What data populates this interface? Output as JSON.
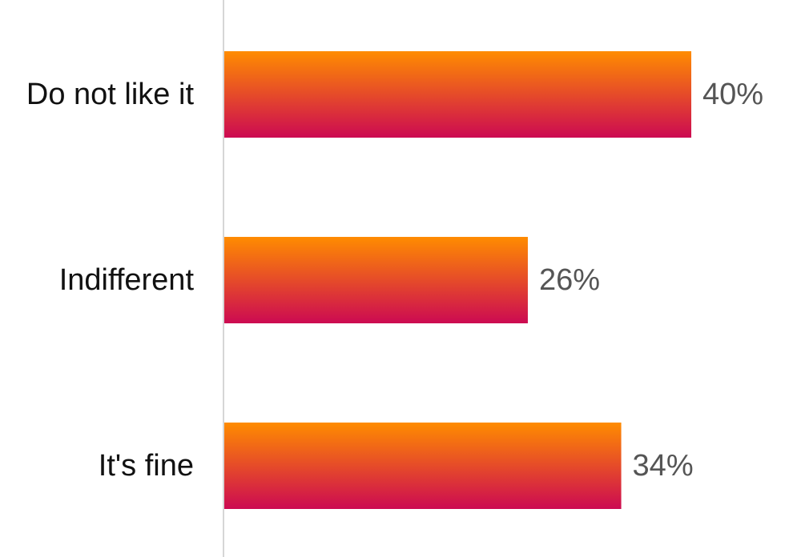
{
  "chart_data": {
    "type": "bar",
    "orientation": "horizontal",
    "categories": [
      "Do not like it",
      "Indifferent",
      "It's fine"
    ],
    "values": [
      40,
      26,
      34
    ],
    "value_labels": [
      "40%",
      "26%",
      "34%"
    ],
    "title": "",
    "xlabel": "",
    "ylabel": "",
    "xlim": [
      0,
      40
    ],
    "grid": false,
    "legend": "none",
    "colors": {
      "bar_top": "#ff8c00",
      "bar_bottom": "#cc0a52",
      "axis": "#d6d6d6",
      "category_text": "#111111",
      "value_text": "#555555"
    }
  }
}
